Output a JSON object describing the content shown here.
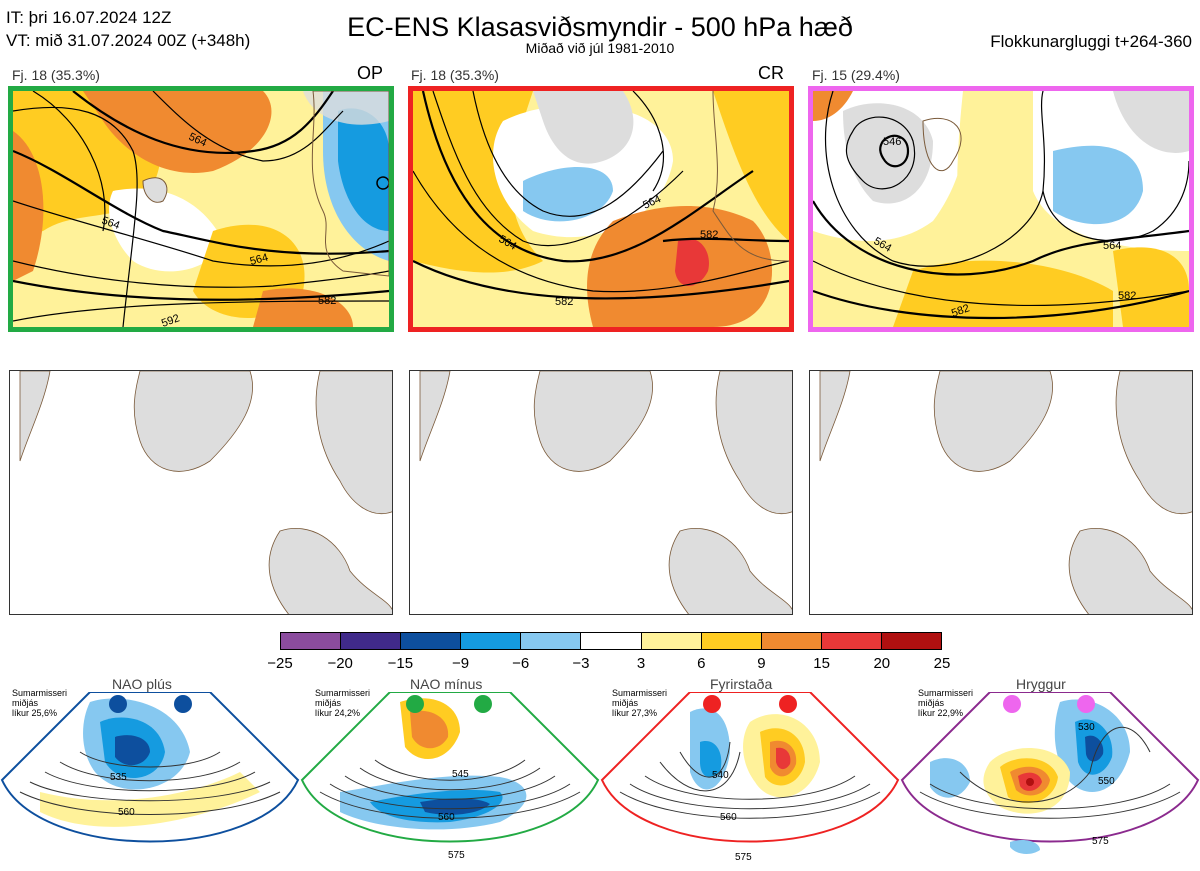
{
  "header": {
    "it_line": "IT: þri 16.07.2024 12Z",
    "vt_line": "VT: mið 31.07.2024 00Z  (+348h)",
    "title": "EC-ENS Klasasviðsmyndir - 500 hPa hæð",
    "subtitle": "Miðað við júl 1981-2010",
    "window": "Flokkunargluggi t+264-360"
  },
  "clusters": [
    {
      "label": "Fj. 18 (35.3%)",
      "tag": "OP",
      "border_color": "#22aa44",
      "contours": [
        "564",
        "564",
        "564",
        "582",
        "592"
      ]
    },
    {
      "label": "Fj. 18 (35.3%)",
      "tag": "CR",
      "border_color": "#ee2222",
      "contours": [
        "564",
        "564",
        "582",
        "582"
      ]
    },
    {
      "label": "Fj. 15 (29.4%)",
      "tag": "",
      "border_color": "#ee66ee",
      "contours": [
        "546",
        "564",
        "564",
        "582",
        "582"
      ]
    }
  ],
  "colorbar": {
    "colors": [
      "#8b4c9e",
      "#402a8a",
      "#0d4f9e",
      "#159be0",
      "#86c8f0",
      "#ffffff",
      "#fff29a",
      "#ffcc22",
      "#f08a30",
      "#e83838",
      "#b01010"
    ],
    "ticks": [
      "−25",
      "−20",
      "−15",
      "−9",
      "−6",
      "−3",
      "3",
      "6",
      "9",
      "15",
      "20",
      "25"
    ]
  },
  "regimes": [
    {
      "name": "NAO plús",
      "season": "Sumarmisseri",
      "mid": "miðjás",
      "prob": "líkur 25,6%",
      "color": "#0d4f9e",
      "contours": [
        "535",
        "560"
      ]
    },
    {
      "name": "NAO mínus",
      "season": "Sumarmisseri",
      "mid": "miðjás",
      "prob": "líkur 24,2%",
      "color": "#22aa44",
      "contours": [
        "545",
        "560",
        "575"
      ]
    },
    {
      "name": "Fyrirstaða",
      "season": "Sumarmisseri",
      "mid": "miðjás",
      "prob": "líkur 27,3%",
      "color": "#ee2222",
      "contours": [
        "540",
        "560",
        "575"
      ]
    },
    {
      "name": "Hryggur",
      "season": "Sumarmisseri",
      "mid": "miðjás",
      "prob": "líkur 22,9%",
      "color": "#ee66ee",
      "contours": [
        "530",
        "550",
        "575"
      ]
    }
  ]
}
